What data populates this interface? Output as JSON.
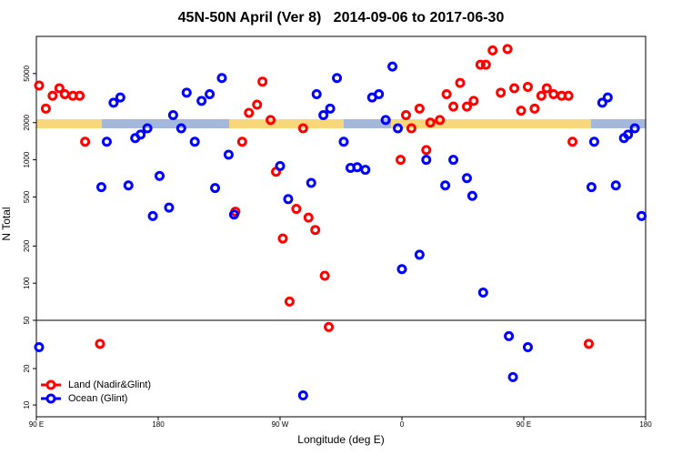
{
  "chart_data": {
    "type": "scatter",
    "title": "45N-50N April (Ver 8)   2014-09-06 to 2017-06-30",
    "x_label": "Longitude (deg E)",
    "y_label": "N Total",
    "log_y": true,
    "legend": "bottom-left",
    "xlim": [
      90,
      540
    ],
    "xticks": [
      {
        "value": 90,
        "label": "90 E"
      },
      {
        "value": 180,
        "label": "180"
      },
      {
        "value": 270,
        "label": "90 W"
      },
      {
        "value": 360,
        "label": "0"
      },
      {
        "value": 450,
        "label": "90 E"
      },
      {
        "value": 540,
        "label": "180"
      }
    ],
    "panels": [
      {
        "ylim": [
          50,
          10000
        ],
        "yticks": [
          100,
          200,
          500,
          1000,
          2000,
          5000
        ]
      },
      {
        "ylim": [
          8,
          50
        ],
        "yticks": [
          10,
          20,
          50
        ]
      }
    ],
    "series": [
      {
        "name": "Land (Nadir&Glint)",
        "color": "#ff0000",
        "x": [
          92,
          97,
          102,
          107,
          111,
          117,
          122,
          126,
          137,
          237,
          242,
          247,
          253,
          257,
          263,
          267,
          272,
          277,
          282,
          287,
          291,
          296,
          303,
          306,
          359,
          363,
          367,
          373,
          378,
          381,
          388,
          393,
          398,
          403,
          408,
          413,
          418,
          422,
          427,
          433,
          438,
          443,
          448,
          453,
          458,
          463,
          467,
          472,
          478,
          483,
          486,
          498
        ],
        "values": [
          4000,
          2600,
          3300,
          3800,
          3400,
          3300,
          3300,
          1400,
          32,
          380,
          1400,
          2400,
          2800,
          4300,
          2100,
          800,
          230,
          71,
          400,
          1800,
          340,
          270,
          115,
          44,
          1000,
          2300,
          1800,
          2600,
          1200,
          2000,
          2100,
          3400,
          2700,
          4200,
          2700,
          3000,
          5900,
          5900,
          7700,
          3500,
          7900,
          3800,
          2500,
          3900,
          2600,
          3300,
          3800,
          3400,
          3300,
          3300,
          1400,
          32
        ]
      },
      {
        "name": "Ocean (Glint)",
        "color": "#0000ff",
        "x": [
          92,
          138,
          142,
          147,
          152,
          158,
          163,
          167,
          172,
          176,
          181,
          188,
          191,
          197,
          201,
          207,
          212,
          218,
          222,
          227,
          232,
          236,
          270,
          276,
          287,
          293,
          297,
          302,
          307,
          312,
          317,
          322,
          327,
          333,
          338,
          343,
          348,
          353,
          357,
          360,
          373,
          378,
          392,
          398,
          408,
          412,
          420,
          439,
          442,
          453,
          500,
          502,
          508,
          512,
          518,
          524,
          527,
          532,
          537
        ],
        "values": [
          30,
          600,
          1400,
          2900,
          3200,
          620,
          1500,
          1600,
          1800,
          350,
          740,
          410,
          2300,
          1800,
          3500,
          1400,
          3000,
          3400,
          590,
          4600,
          1100,
          360,
          890,
          480,
          12,
          650,
          3400,
          2300,
          2600,
          4600,
          1400,
          860,
          870,
          830,
          3200,
          3400,
          2100,
          5700,
          1800,
          130,
          170,
          1000,
          620,
          1000,
          710,
          510,
          84,
          37,
          17,
          30,
          600,
          1400,
          2900,
          3200,
          620,
          1500,
          1600,
          1800,
          350
        ]
      }
    ]
  }
}
